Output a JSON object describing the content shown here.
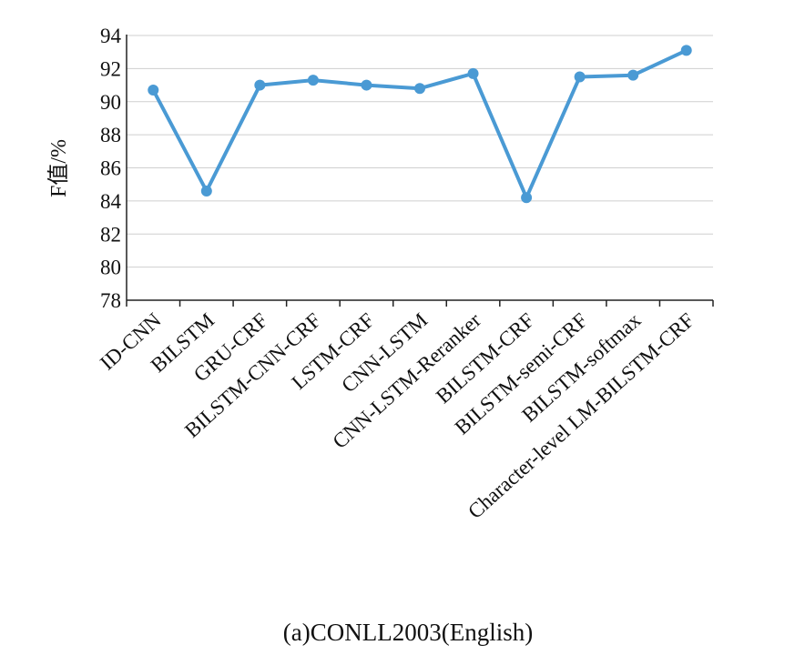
{
  "chart_data": {
    "type": "line",
    "categories": [
      "ID-CNN",
      "BILSTM",
      "GRU-CRF",
      "BILSTM-CNN-CRF",
      "LSTM-CRF",
      "CNN-LSTM",
      "CNN-LSTM-Reranker",
      "BILSTM-CRF",
      "BILSTM-semi-CRF",
      "BILSTM-softmax",
      "Character-level  LM-BILSTM-CRF"
    ],
    "series": [
      {
        "values": [
          90.7,
          84.6,
          91.0,
          91.3,
          91.0,
          90.8,
          91.7,
          84.2,
          91.5,
          91.6,
          93.1
        ],
        "color": "#4a9ad4"
      }
    ],
    "ylabel": "F值/%",
    "ylim": [
      78,
      94
    ],
    "yticks": [
      78,
      80,
      82,
      84,
      86,
      88,
      90,
      92,
      94
    ],
    "grid": true,
    "caption": "(a)CONLL2003(English)"
  }
}
